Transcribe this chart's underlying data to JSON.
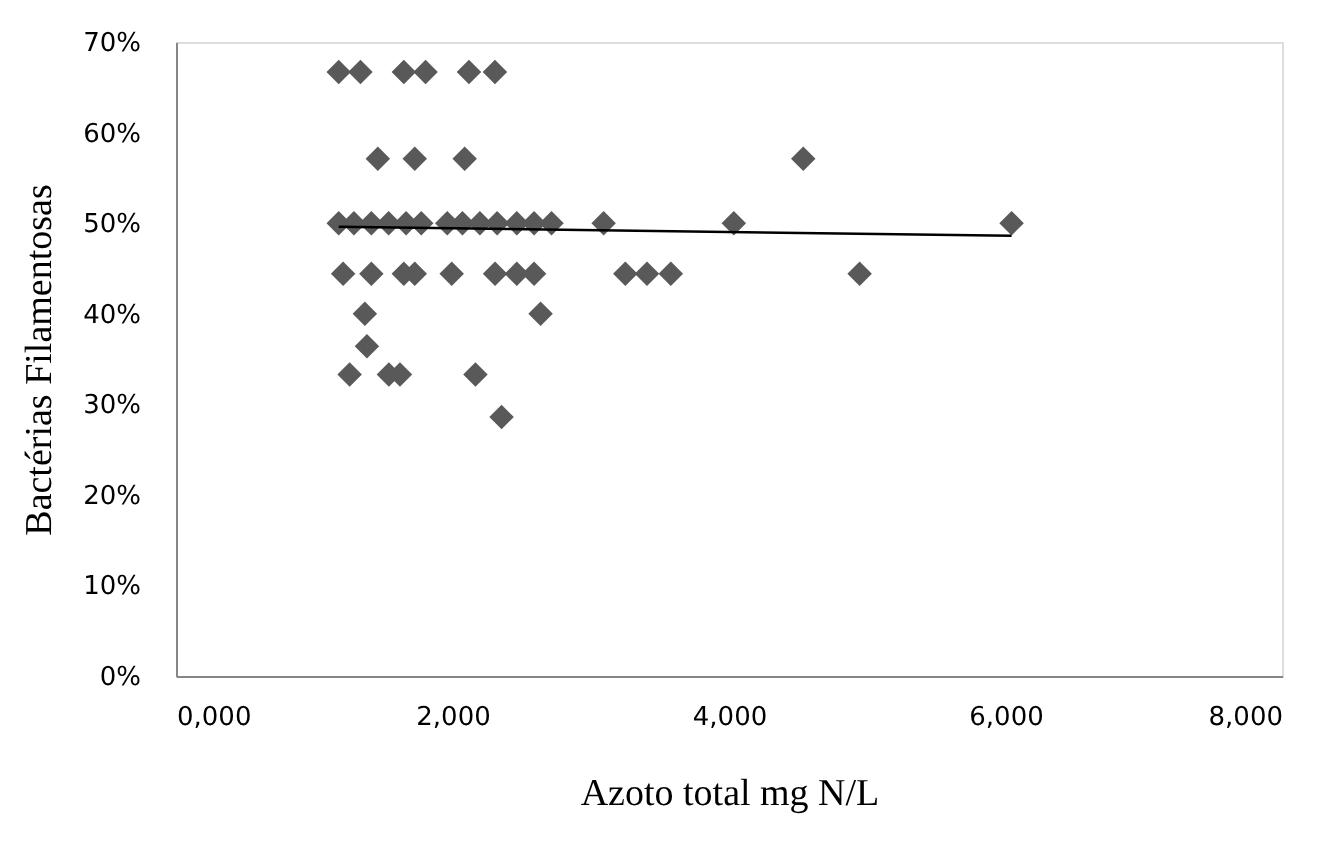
{
  "chart_data": {
    "type": "scatter",
    "xlabel": "Azoto total mg N/L",
    "ylabel": "Bactérias Filamentosas",
    "xlim": [
      0,
      8000
    ],
    "ylim": [
      0,
      70
    ],
    "xticks": [
      {
        "value": 0,
        "label": "0,000"
      },
      {
        "value": 2000,
        "label": "2,000"
      },
      {
        "value": 4000,
        "label": "4,000"
      },
      {
        "value": 6000,
        "label": "6,000"
      },
      {
        "value": 8000,
        "label": "8,000"
      }
    ],
    "yticks": [
      {
        "value": 0,
        "label": "0%"
      },
      {
        "value": 10,
        "label": "10%"
      },
      {
        "value": 20,
        "label": "20%"
      },
      {
        "value": 30,
        "label": "30%"
      },
      {
        "value": 40,
        "label": "40%"
      },
      {
        "value": 50,
        "label": "50%"
      },
      {
        "value": 60,
        "label": "60%"
      },
      {
        "value": 70,
        "label": "70%"
      }
    ],
    "grid": false,
    "marker": "diamond",
    "series": [
      {
        "color": "#595959",
        "x": [
          1177,
          1334,
          1648,
          1805,
          2119,
          2307,
          1460,
          1727,
          2088,
          4537,
          1177,
          1287,
          1413,
          1538,
          1664,
          1774,
          1962,
          2072,
          2198,
          2323,
          2465,
          2590,
          2716,
          3093,
          4035,
          6044,
          1209,
          1413,
          1648,
          1727,
          1994,
          2308,
          2465,
          2590,
          3250,
          3407,
          3579,
          4945,
          1366,
          2637,
          1381,
          1256,
          1540,
          1620,
          2166,
          2355
        ],
        "values": [
          66.7,
          66.7,
          66.7,
          66.7,
          66.7,
          66.7,
          57.1,
          57.1,
          57.1,
          57.1,
          50,
          50,
          50,
          50,
          50,
          50,
          50,
          50,
          50,
          50,
          50,
          50,
          50,
          50,
          50,
          50,
          44.4,
          44.4,
          44.4,
          44.4,
          44.4,
          44.4,
          44.4,
          44.4,
          44.4,
          44.4,
          44.4,
          44.4,
          40,
          40,
          36.4,
          33.3,
          33.3,
          33.3,
          33.3,
          28.6
        ]
      },
      {
        "type": "line",
        "marker": "none",
        "line_style": "solid",
        "color": "#000000",
        "x": [
          1177,
          6044
        ],
        "values": [
          49.6,
          48.6
        ]
      }
    ]
  }
}
